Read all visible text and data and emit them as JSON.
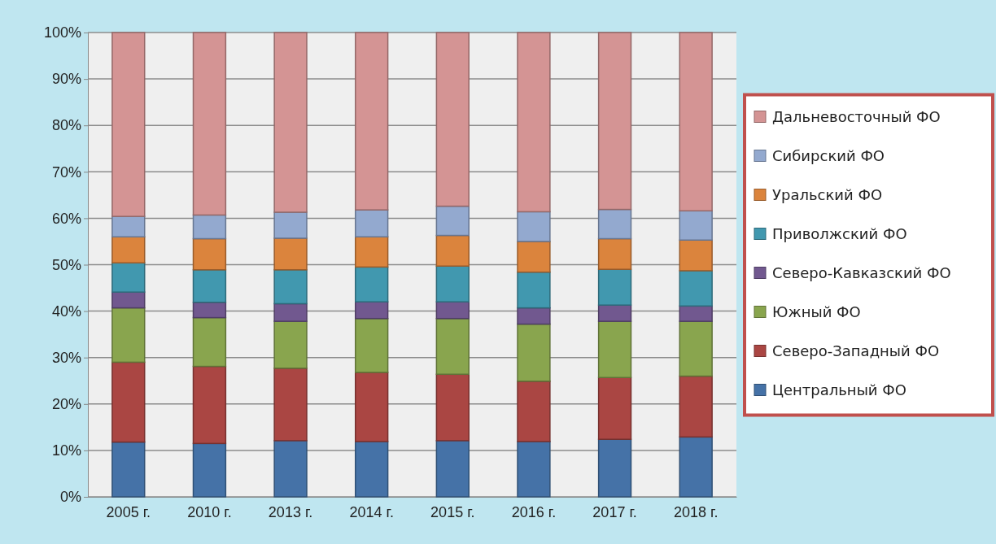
{
  "chart_data": {
    "type": "bar",
    "stacked": true,
    "categories": [
      "2005 г.",
      "2010 г.",
      "2013 г.",
      "2014 г.",
      "2015 г.",
      "2016 г.",
      "2017 г.",
      "2018 г."
    ],
    "series": [
      {
        "name": "Центральный ФО",
        "color": "#4572a7",
        "values": [
          11.8,
          11.5,
          12.1,
          11.9,
          12.1,
          11.9,
          12.4,
          12.9
        ]
      },
      {
        "name": "Северо-Западный ФО",
        "color": "#aa4643",
        "values": [
          17.2,
          16.6,
          15.6,
          14.9,
          14.3,
          13.0,
          13.3,
          13.1
        ]
      },
      {
        "name": "Южный ФО",
        "color": "#89a54e",
        "values": [
          11.7,
          10.5,
          10.1,
          11.6,
          12.0,
          12.3,
          12.1,
          11.8
        ]
      },
      {
        "name": "Северо-Кавказский ФО",
        "color": "#71588f",
        "values": [
          3.4,
          3.3,
          3.8,
          3.6,
          3.6,
          3.5,
          3.5,
          3.3
        ]
      },
      {
        "name": "Приволжский ФО",
        "color": "#4198af",
        "values": [
          6.3,
          7.0,
          7.3,
          7.5,
          7.7,
          7.7,
          7.7,
          7.6
        ]
      },
      {
        "name": "Уральский ФО",
        "color": "#db843d",
        "values": [
          5.6,
          6.7,
          6.8,
          6.5,
          6.6,
          6.6,
          6.6,
          6.6
        ]
      },
      {
        "name": "Сибирский ФО",
        "color": "#93a9cf",
        "values": [
          4.4,
          5.1,
          5.6,
          5.8,
          6.3,
          6.4,
          6.3,
          6.3
        ]
      },
      {
        "name": "Дальневосточный ФО",
        "color": "#d49494",
        "values": [
          39.6,
          39.3,
          38.7,
          38.2,
          37.4,
          38.6,
          38.1,
          38.4
        ]
      }
    ],
    "ylim": [
      0,
      100
    ],
    "yticks": [
      {
        "value": 0,
        "label": "0%"
      },
      {
        "value": 10,
        "label": "10%"
      },
      {
        "value": 20,
        "label": "20%"
      },
      {
        "value": 30,
        "label": "30%"
      },
      {
        "value": 40,
        "label": "40%"
      },
      {
        "value": 50,
        "label": "50%"
      },
      {
        "value": 60,
        "label": "60%"
      },
      {
        "value": 70,
        "label": "70%"
      },
      {
        "value": 80,
        "label": "80%"
      },
      {
        "value": 90,
        "label": "90%"
      },
      {
        "value": 100,
        "label": "100%"
      }
    ],
    "grid": "y",
    "legend": "right"
  }
}
